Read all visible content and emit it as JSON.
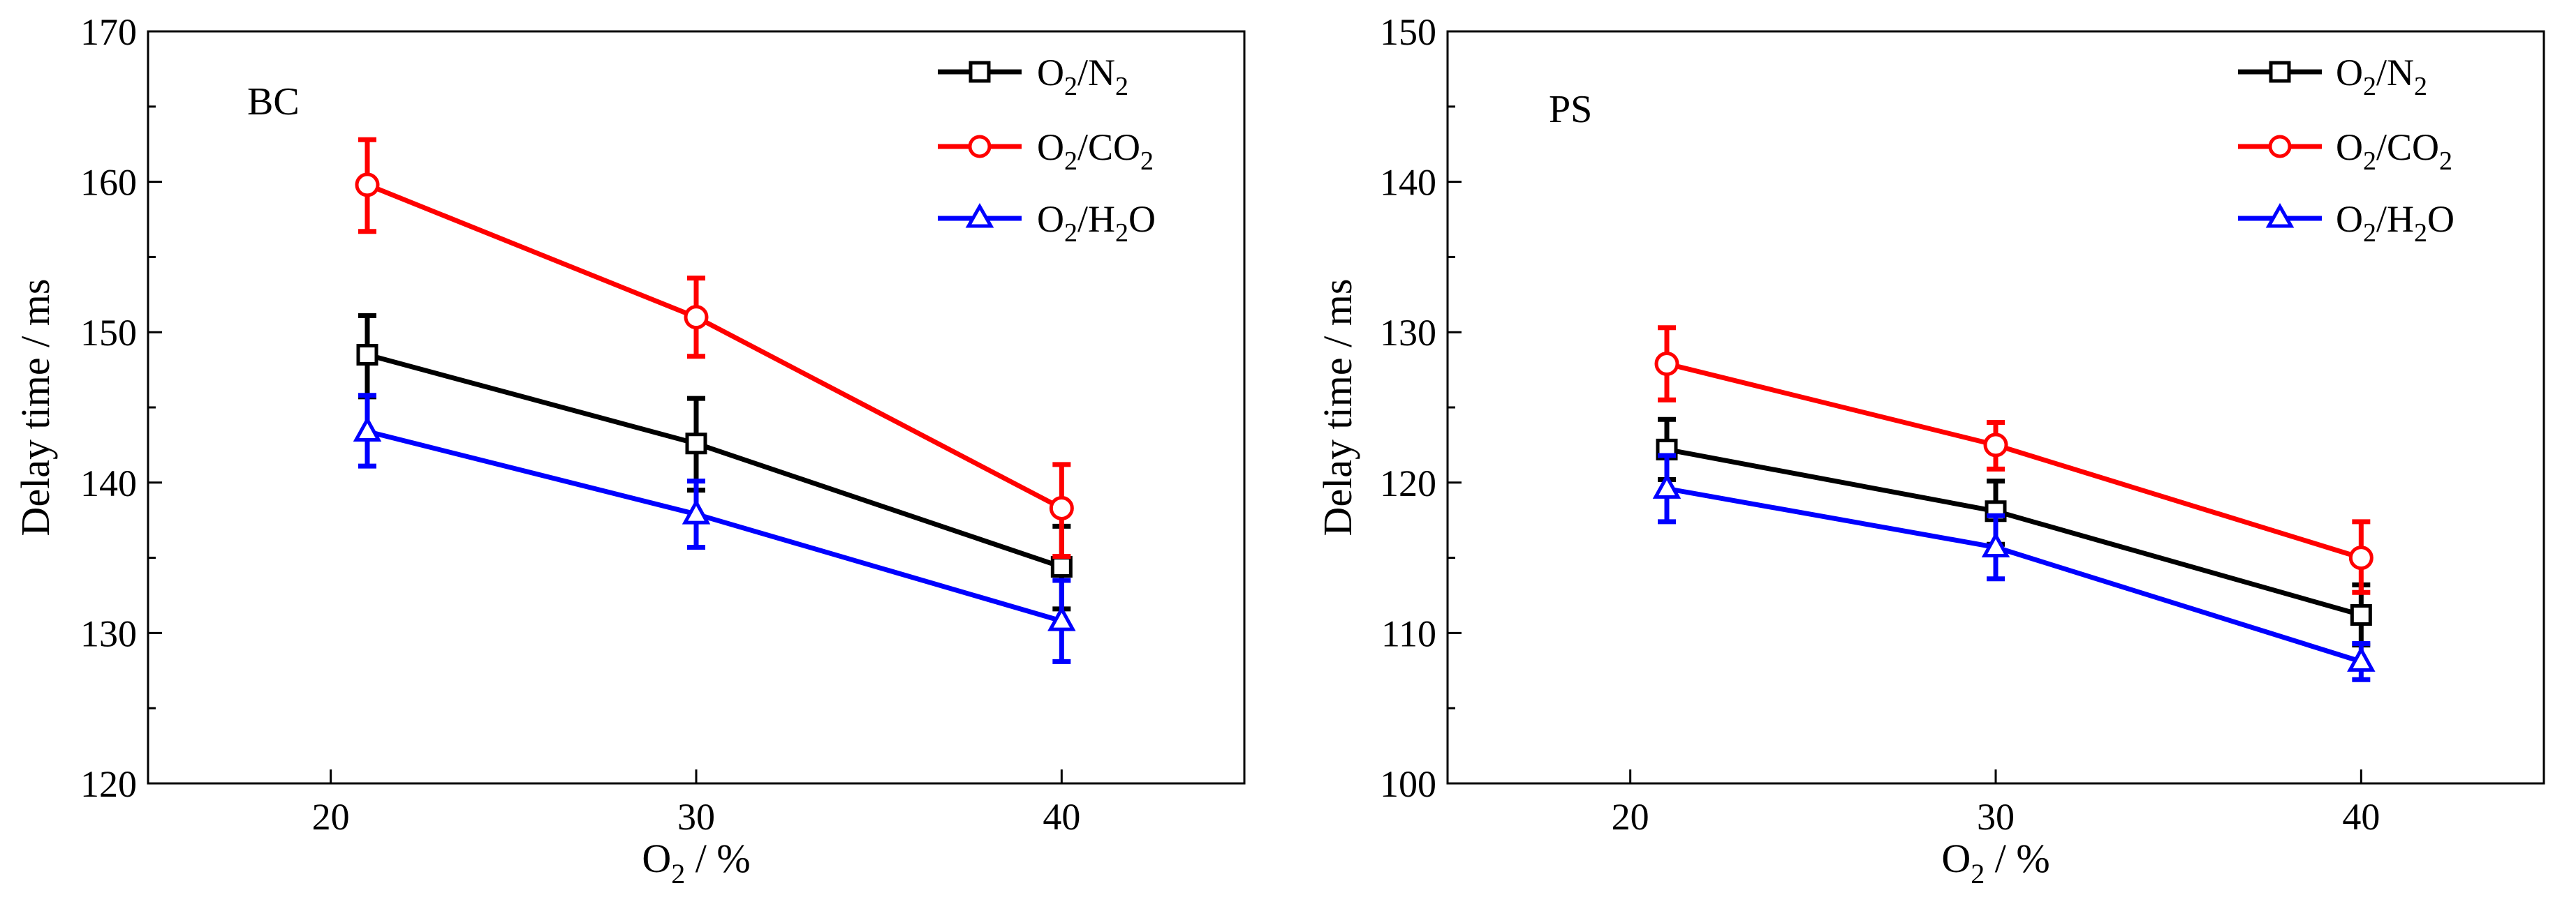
{
  "chart_data": [
    {
      "type": "line",
      "panel_label": "BC",
      "xlabel": {
        "base": "O",
        "sub": "2",
        "rest": " / %"
      },
      "ylabel": "Delay time / ms",
      "xlim": [
        15,
        45
      ],
      "ylim": [
        120,
        170
      ],
      "x_ticks": [
        20,
        30,
        40
      ],
      "x_tick_labels": [
        "20",
        "30",
        "40"
      ],
      "y_ticks": [
        120,
        130,
        140,
        150,
        160,
        170
      ],
      "y_tick_labels": [
        "120",
        "130",
        "140",
        "150",
        "160",
        "170"
      ],
      "x": [
        21,
        30,
        40
      ],
      "legend_position": "top-right",
      "series": [
        {
          "name": "O2/N2",
          "legend": {
            "a": "O",
            "s1": "2",
            "b": "/N",
            "s2": "2",
            "c": ""
          },
          "color": "#000000",
          "marker": "square",
          "values": [
            148.5,
            142.6,
            134.4
          ],
          "err_low": [
            2.8,
            3.1,
            2.8
          ],
          "err_high": [
            2.6,
            3.0,
            2.7
          ]
        },
        {
          "name": "O2/CO2",
          "legend": {
            "a": "O",
            "s1": "2",
            "b": "/CO",
            "s2": "2",
            "c": ""
          },
          "color": "#ff0000",
          "marker": "circle",
          "values": [
            159.8,
            151.0,
            138.3
          ],
          "err_low": [
            3.1,
            2.6,
            3.2
          ],
          "err_high": [
            3.0,
            2.6,
            2.9
          ]
        },
        {
          "name": "O2/H2O",
          "legend": {
            "a": "O",
            "s1": "2",
            "b": "/H",
            "s2": "2",
            "c": "O"
          },
          "color": "#0000ff",
          "marker": "triangle",
          "values": [
            143.4,
            137.9,
            130.8
          ],
          "err_low": [
            2.3,
            2.2,
            2.7
          ],
          "err_high": [
            2.4,
            2.2,
            2.7
          ]
        }
      ]
    },
    {
      "type": "line",
      "panel_label": "PS",
      "xlabel": {
        "base": "O",
        "sub": "2",
        "rest": " / %"
      },
      "ylabel": "Delay time / ms",
      "xlim": [
        15,
        45
      ],
      "ylim": [
        100,
        150
      ],
      "x_ticks": [
        20,
        30,
        40
      ],
      "x_tick_labels": [
        "20",
        "30",
        "40"
      ],
      "y_ticks": [
        100,
        110,
        120,
        130,
        140,
        150
      ],
      "y_tick_labels": [
        "100",
        "110",
        "120",
        "130",
        "140",
        "150"
      ],
      "x": [
        21,
        30,
        40
      ],
      "legend_position": "top-right",
      "series": [
        {
          "name": "O2/N2",
          "legend": {
            "a": "O",
            "s1": "2",
            "b": "/N",
            "s2": "2",
            "c": ""
          },
          "color": "#000000",
          "marker": "square",
          "values": [
            122.2,
            118.1,
            111.2
          ],
          "err_low": [
            2.0,
            2.2,
            2.0
          ],
          "err_high": [
            2.0,
            2.0,
            2.0
          ]
        },
        {
          "name": "O2/CO2",
          "legend": {
            "a": "O",
            "s1": "2",
            "b": "/CO",
            "s2": "2",
            "c": ""
          },
          "color": "#ff0000",
          "marker": "circle",
          "values": [
            127.9,
            122.5,
            115.0
          ],
          "err_low": [
            2.4,
            1.6,
            2.3
          ],
          "err_high": [
            2.4,
            1.5,
            2.4
          ]
        },
        {
          "name": "O2/H2O",
          "legend": {
            "a": "O",
            "s1": "2",
            "b": "/H",
            "s2": "2",
            "c": "O"
          },
          "color": "#0000ff",
          "marker": "triangle",
          "values": [
            119.6,
            115.7,
            108.1
          ],
          "err_low": [
            2.2,
            2.1,
            1.2
          ],
          "err_high": [
            2.2,
            2.1,
            1.2
          ]
        }
      ]
    }
  ]
}
